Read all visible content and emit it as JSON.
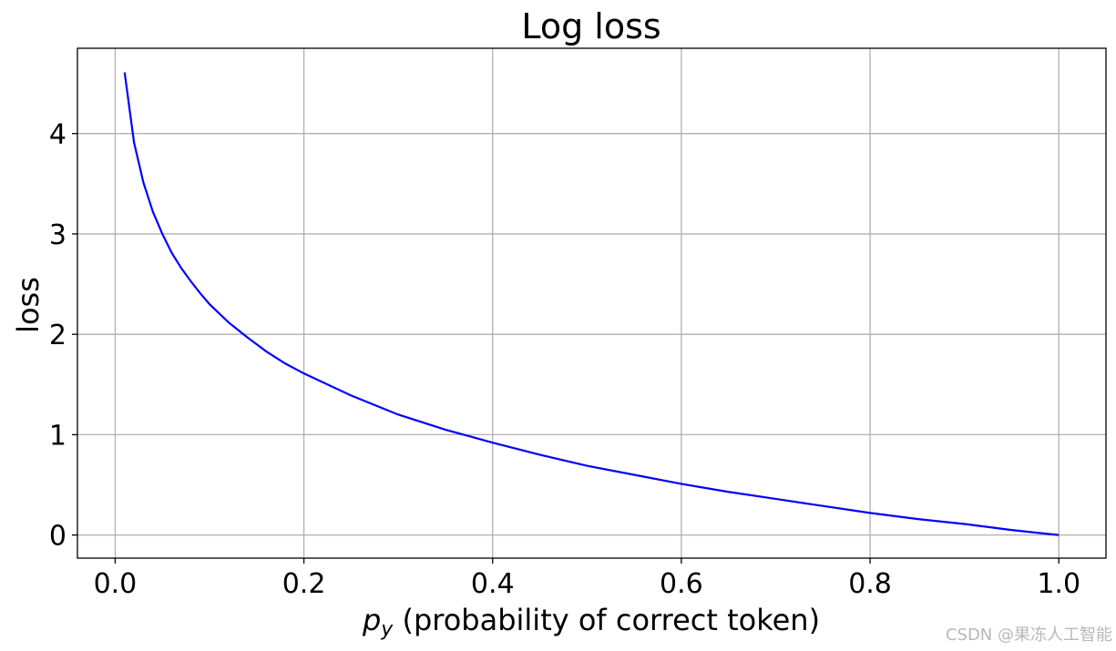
{
  "chart_data": {
    "type": "line",
    "title": "Log loss",
    "xlabel_main": "p",
    "xlabel_sub": "y",
    "xlabel_rest": " (probability of correct token)",
    "ylabel": "loss",
    "xlim": [
      -0.04,
      1.05
    ],
    "ylim": [
      -0.23,
      4.85
    ],
    "xticks": [
      0.0,
      0.2,
      0.4,
      0.6,
      0.8,
      1.0
    ],
    "xtick_labels": [
      "0.0",
      "0.2",
      "0.4",
      "0.6",
      "0.8",
      "1.0"
    ],
    "yticks": [
      0,
      1,
      2,
      3,
      4
    ],
    "ytick_labels": [
      "0",
      "1",
      "2",
      "3",
      "4"
    ],
    "grid": true,
    "series": [
      {
        "color": "#0000ff",
        "x": [
          0.01,
          0.02,
          0.03,
          0.04,
          0.05,
          0.06,
          0.07,
          0.08,
          0.09,
          0.1,
          0.12,
          0.14,
          0.16,
          0.18,
          0.2,
          0.25,
          0.3,
          0.35,
          0.4,
          0.45,
          0.5,
          0.55,
          0.6,
          0.65,
          0.7,
          0.75,
          0.8,
          0.85,
          0.9,
          0.95,
          1.0
        ],
        "y": [
          4.61,
          3.91,
          3.51,
          3.22,
          3.0,
          2.81,
          2.66,
          2.53,
          2.41,
          2.3,
          2.12,
          1.97,
          1.83,
          1.71,
          1.61,
          1.39,
          1.2,
          1.05,
          0.92,
          0.8,
          0.69,
          0.6,
          0.51,
          0.43,
          0.36,
          0.29,
          0.22,
          0.16,
          0.11,
          0.05,
          0.0
        ]
      }
    ]
  },
  "watermark": "CSDN @果冻人工智能"
}
